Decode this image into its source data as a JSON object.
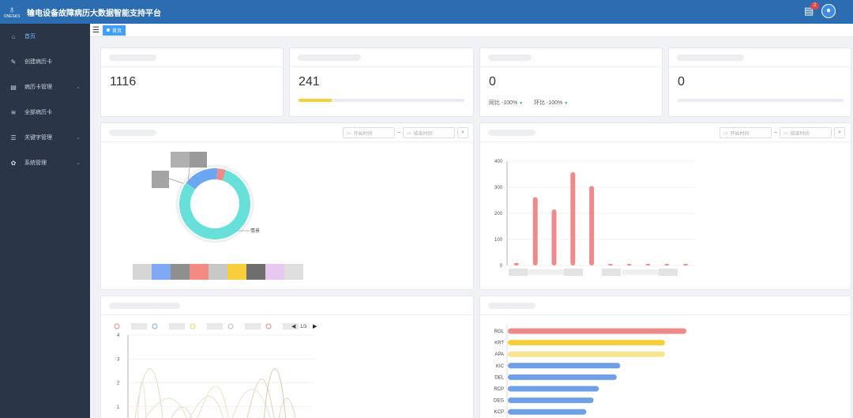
{
  "header": {
    "logo_text": "ONESKS",
    "title": "输电设备故障病历大数据智能支持平台",
    "notification_count": "2"
  },
  "sidebar": {
    "items": [
      {
        "label": "首页",
        "icon": "home-icon",
        "glyph": "⌂",
        "active": true,
        "arrow": ""
      },
      {
        "label": "创建病历卡",
        "icon": "edit-icon",
        "glyph": "✎",
        "active": false,
        "arrow": ""
      },
      {
        "label": "病历卡管理",
        "icon": "file-icon",
        "glyph": "▤",
        "active": false,
        "arrow": "⌄"
      },
      {
        "label": "全部病历卡",
        "icon": "layers-icon",
        "glyph": "≋",
        "active": false,
        "arrow": ""
      },
      {
        "label": "关键字管理",
        "icon": "sliders-icon",
        "glyph": "☰",
        "active": false,
        "arrow": "⌄"
      },
      {
        "label": "系统管理",
        "icon": "gear-icon",
        "glyph": "✿",
        "active": false,
        "arrow": "⌄"
      }
    ]
  },
  "breadcrumb": {
    "tag": "首页"
  },
  "stats": [
    {
      "value": "1116"
    },
    {
      "value": "241",
      "progress": 0.2
    },
    {
      "value": "0",
      "yoy": "同比 -100%",
      "mom": "环比 -100%"
    },
    {
      "value": "0",
      "progress": 0
    }
  ],
  "date_filter": {
    "start_placeholder": "开始时间",
    "end_placeholder": "结束时间",
    "separator": "~"
  },
  "donut": {
    "label": "情景",
    "colors": {
      "main": "#66e0d8",
      "second": "#6aa6f2",
      "third": "#f08a8a"
    },
    "legend_colors": [
      "#d6d6d6",
      "#7eaaf5",
      "#8f8f8f",
      "#f28b82",
      "#c8c8c8",
      "#f7cf3d",
      "#6e6e6e",
      "#e6c8f0",
      "#dedede"
    ]
  },
  "bar_chart": {
    "type": "bar",
    "values": [
      10,
      262,
      215,
      358,
      305,
      3,
      3,
      0,
      0,
      5
    ],
    "yticks": [
      "0",
      "100",
      "200",
      "300",
      "400"
    ],
    "ylim": [
      0,
      400
    ],
    "color": "#ef8a8a"
  },
  "line_chart": {
    "type": "line",
    "yticks": [
      "1",
      "2",
      "3",
      "4"
    ],
    "ylim": [
      0,
      4
    ],
    "legend_page": "1/3",
    "legend_colors": [
      "#f08a8a",
      "#7eaaf5",
      "#f3d35a",
      "#bbbbbb",
      "#ef8a8a"
    ]
  },
  "hbar_chart": {
    "type": "bar",
    "categories": [
      "RGL",
      "KRT",
      "APA",
      "KIC",
      "DEL",
      "RCP",
      "DEG",
      "KCP"
    ],
    "values": [
      100,
      88,
      88,
      63,
      61,
      51,
      48,
      44
    ],
    "colors": [
      "#ef8a8a",
      "#f4cf3a",
      "#f7e48f",
      "#6fa0e6",
      "#6fa0e6",
      "#6fa0e6",
      "#6fa0e6",
      "#6fa0e6"
    ]
  }
}
